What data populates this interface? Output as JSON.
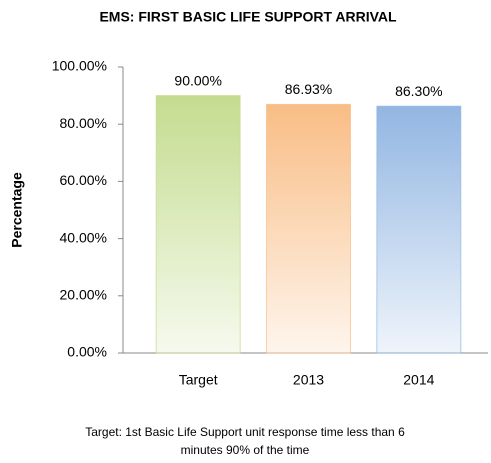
{
  "chart_data": {
    "type": "bar",
    "title": "EMS: FIRST BASIC LIFE SUPPORT ARRIVAL",
    "ylabel": "Percentage",
    "categories": [
      "Target",
      "2013",
      "2014"
    ],
    "values": [
      90,
      86.93,
      86.3
    ],
    "value_labels": [
      "90.00%",
      "86.93%",
      "86.30%"
    ],
    "colors": [
      "#c4dc8f",
      "#f9bd85",
      "#92b6e2"
    ],
    "ylim": [
      0,
      100
    ],
    "yticks": [
      {
        "value": 0,
        "label": "0.00%"
      },
      {
        "value": 20,
        "label": "20.00%"
      },
      {
        "value": 40,
        "label": "40.00%"
      },
      {
        "value": 60,
        "label": "60.00%"
      },
      {
        "value": 80,
        "label": "80.00%"
      },
      {
        "value": 100,
        "label": "100.00%"
      }
    ],
    "grid": false,
    "footnote": [
      "Target:  1st Basic Life Support unit response time less than 6",
      "minutes 90% of the time"
    ]
  }
}
